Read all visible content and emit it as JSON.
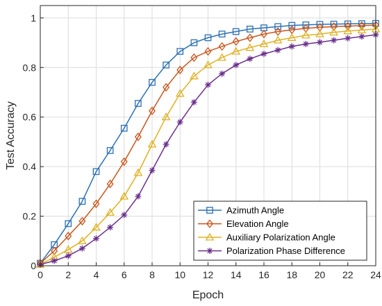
{
  "chart_data": {
    "type": "line",
    "xlabel": "Epoch",
    "ylabel": "Test Accuracy",
    "xlim": [
      0,
      24
    ],
    "ylim": [
      0,
      1.05
    ],
    "xticks": [
      0,
      2,
      4,
      6,
      8,
      10,
      12,
      14,
      16,
      18,
      20,
      22,
      24
    ],
    "yticks": [
      0,
      0.2,
      0.4,
      0.6,
      0.8,
      1
    ],
    "ytick_labels": [
      "0",
      "0.2",
      "0.4",
      "0.6",
      "0.8",
      "1"
    ],
    "grid": true,
    "legend_position": "bottom-right",
    "x": [
      0,
      1,
      2,
      3,
      4,
      5,
      6,
      7,
      8,
      9,
      10,
      11,
      12,
      13,
      14,
      15,
      16,
      17,
      18,
      19,
      20,
      21,
      22,
      23,
      24
    ],
    "series": [
      {
        "name": "Azimuth Angle",
        "color": "#2a6fb4",
        "marker": "square",
        "values": [
          0.01,
          0.085,
          0.17,
          0.26,
          0.38,
          0.465,
          0.555,
          0.655,
          0.74,
          0.81,
          0.865,
          0.9,
          0.92,
          0.935,
          0.945,
          0.955,
          0.96,
          0.965,
          0.97,
          0.972,
          0.974,
          0.975,
          0.976,
          0.977,
          0.978
        ]
      },
      {
        "name": "Elevation Angle",
        "color": "#c9541a",
        "marker": "diamond",
        "values": [
          0.01,
          0.06,
          0.12,
          0.18,
          0.25,
          0.33,
          0.42,
          0.52,
          0.625,
          0.72,
          0.79,
          0.84,
          0.865,
          0.885,
          0.905,
          0.92,
          0.935,
          0.945,
          0.952,
          0.958,
          0.962,
          0.965,
          0.967,
          0.969,
          0.971
        ]
      },
      {
        "name": "Auxiliary Polarization Angle",
        "color": "#e0b020",
        "marker": "triangle",
        "values": [
          0.005,
          0.035,
          0.065,
          0.1,
          0.155,
          0.215,
          0.28,
          0.375,
          0.49,
          0.6,
          0.695,
          0.765,
          0.81,
          0.84,
          0.865,
          0.88,
          0.895,
          0.91,
          0.92,
          0.93,
          0.935,
          0.942,
          0.947,
          0.951,
          0.955
        ]
      },
      {
        "name": "Polarization Phase Difference",
        "color": "#6a2e8c",
        "marker": "star",
        "values": [
          0.005,
          0.02,
          0.04,
          0.07,
          0.11,
          0.155,
          0.205,
          0.28,
          0.385,
          0.49,
          0.58,
          0.66,
          0.73,
          0.775,
          0.81,
          0.835,
          0.855,
          0.87,
          0.885,
          0.895,
          0.902,
          0.91,
          0.918,
          0.925,
          0.932
        ]
      }
    ]
  }
}
